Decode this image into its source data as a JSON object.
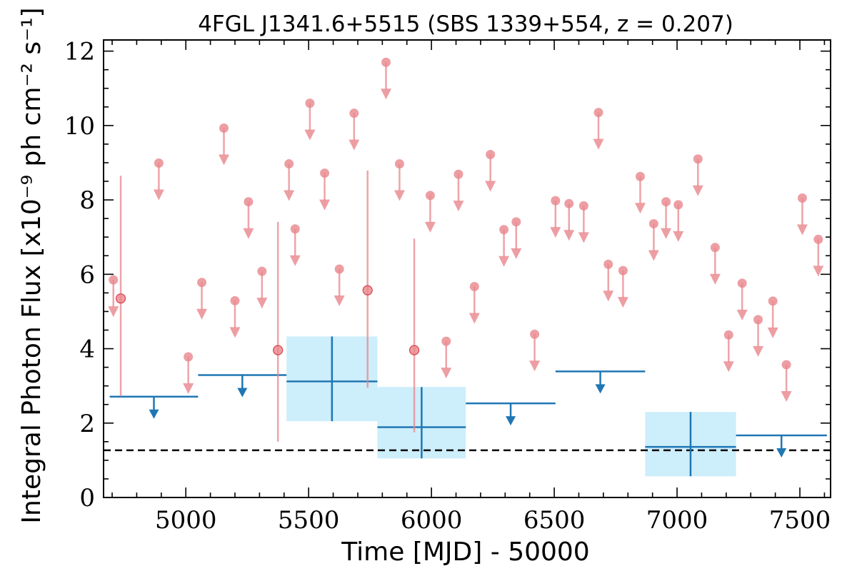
{
  "chart_data": {
    "type": "scatter",
    "title": "4FGL J1341.6+5515 (SBS 1339+554, z = 0.207)",
    "xlabel": "Time [MJD] - 50000",
    "ylabel": "Integral Photon Flux [x10⁻⁹ ph cm⁻² s⁻¹]",
    "xlim": [
      4665,
      7625
    ],
    "ylim": [
      0,
      12.3
    ],
    "x_ticks": [
      5000,
      5500,
      6000,
      6500,
      7000,
      7500
    ],
    "y_ticks": [
      0,
      2,
      4,
      6,
      8,
      10,
      12
    ],
    "grid": false,
    "legend": "none",
    "colors": {
      "short_bin": "#e8868c",
      "long_bin": "#1f77b4",
      "long_bin_band": "#cdeefb",
      "reference_line": "#000000"
    },
    "reference_line": {
      "y": 1.27,
      "style": "dashed"
    },
    "series": [
      {
        "kind": "short-bin upper limits",
        "x": [
          4705,
          4890,
          5010,
          5065,
          5155,
          5200,
          5255,
          5310,
          5420,
          5445,
          5505,
          5565,
          5625,
          5685,
          5815,
          5870,
          5995,
          6060,
          6110,
          6175,
          6240,
          6295,
          6345,
          6420,
          6505,
          6560,
          6620,
          6680,
          6720,
          6780,
          6850,
          6905,
          6955,
          7005,
          7085,
          7155,
          7210,
          7265,
          7330,
          7390,
          7445,
          7510,
          7575
        ],
        "y": [
          5.85,
          8.99,
          3.78,
          5.78,
          9.93,
          5.29,
          7.95,
          6.08,
          8.97,
          7.22,
          10.6,
          8.72,
          6.14,
          10.33,
          11.7,
          8.97,
          8.12,
          4.2,
          8.69,
          5.67,
          9.22,
          7.2,
          7.41,
          4.39,
          7.98,
          7.9,
          7.84,
          10.35,
          6.27,
          6.1,
          8.63,
          7.36,
          7.95,
          7.87,
          9.1,
          6.72,
          4.37,
          5.76,
          4.78,
          5.28,
          3.57,
          8.05,
          6.94
        ]
      },
      {
        "kind": "short-bin detections",
        "x": [
          4735,
          5375,
          5740,
          5930
        ],
        "y": [
          5.35,
          3.96,
          5.57,
          3.96
        ],
        "yerr_low": [
          2.63,
          2.46,
          2.62,
          2.21
        ],
        "yerr_high": [
          3.3,
          3.45,
          3.22,
          3.0
        ]
      },
      {
        "kind": "long-bin upper limits",
        "x_start": [
          4690,
          5050,
          6140,
          6505,
          7240
        ],
        "x_end": [
          5050,
          5410,
          6505,
          6870,
          7610
        ],
        "y": [
          2.71,
          3.29,
          2.53,
          3.39,
          1.67
        ]
      },
      {
        "kind": "long-bin detections",
        "x": [
          5595,
          5960,
          7055
        ],
        "x_start": [
          5410,
          5780,
          6870
        ],
        "x_end": [
          5780,
          6140,
          7240
        ],
        "y": [
          3.12,
          1.89,
          1.36
        ],
        "y_low": [
          2.05,
          1.05,
          0.57
        ],
        "y_high": [
          4.33,
          2.97,
          2.3
        ]
      }
    ]
  }
}
